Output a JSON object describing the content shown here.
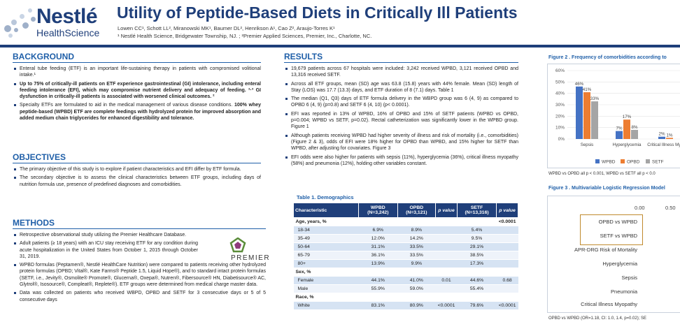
{
  "header": {
    "logo_main": "Nestlé",
    "logo_sub": "HealthScience",
    "title": "Utility of Peptide-Based Diets in Critically Ill Patients",
    "authors": "Lowen CC¹, Schott LL², Miranowski MK¹, Baumer DL², Henrikson A¹, Cao Z², Araujo-Torres K¹",
    "affiliations": "¹ Nestlé Health Science, Bridgewater Township, NJ. ; ²Premier Applied Sciences, Premier, Inc., Charlotte, NC."
  },
  "background": {
    "heading": "BACKGROUND",
    "items": [
      {
        "pre": "Enteral tube feeding (ETF) is an important life-sustaining therapy in patients with compromised volitional intake.¹",
        "bold": ""
      },
      {
        "pre": "",
        "bold": "Up to 75% of critically-ill patients on ETF experience gastrointestinal (GI) intolerance, including enteral feeding intolerance (EFI), which may compromise nutrient delivery and adequacy of feeding. ²·³ GI dysfunction in critically-ill patients is associated with worsened clinical outcomes. ²"
      },
      {
        "pre": "Specialty ETFs are formulated to aid in the medical management of various disease conditions. ",
        "bold": "100% whey peptide-based (WPBD) ETF are complete feedings with hydrolyzed protein for improved absorption and added medium chain triglycerides for enhanced digestibility and tolerance."
      }
    ]
  },
  "objectives": {
    "heading": "OBJECTIVES",
    "items": [
      "The primary objective of this study is to explore if patient characteristics and EFI differ by ETF formula.",
      "The secondary objective is to assess the clinical characteristics between ETF groups, including days of nutrition formula use, presence of predefined diagnoses and comorbidities."
    ]
  },
  "methods": {
    "heading": "METHODS",
    "items": [
      "Retrospective observational study utilizing the Premier Healthcare Database.",
      "Adult patients (≥ 18 years) with an ICU stay receiving ETF for any condition during acute hospitalization in the United States from October 1, 2015 through October 31, 2019.",
      "WPBD formulas (Peptamen®, Nestlé HealthCare Nutrition) were compared to patients receiving other hydrolyzed protein formulas (OPBD; Vital®, Kate Farms® Peptide 1.5, Liquid Hope®), and to standard intact protein formulas (SETF, i.e., Jevity®, Osmolite® Promote®, Glucerna®, Oxepa®, Nutren®, Fibersource® HN, Diabetisource® AC, Glytrol®, Isosource®, Compleat®, Replete®). ETF groups were determined from medical charge master data.",
      "Data was collected on patients who received WBPD, OPBD and SETF for 3 consecutive days or 5 of 5 consecutive days"
    ],
    "premier_logo": "PREMIER"
  },
  "results": {
    "heading": "RESULTS",
    "items": [
      "19,679 patients across 67 hospitals were included: 3,242 received WPBD, 3,121 received OPBD and 13,316 received SETF.",
      "Across all ETF groups, mean (SD) age was 63.8 (15.8) years with 44% female. Mean (SD) length of Stay (LOS) was 17.7 (13.3) days, and ETF duration of 8 (7.1) days. Table 1",
      "The median (Q1, Q3) days of ETF formula delivery in the WBPD group was 6 (4, 9) as compared to OPBD 6 (4, 9) (p=0.8) and SETF 6 (4, 10) (p< 0.0001).",
      "EFI was reported in 13% of WPBD, 16% of OPBD and 15% of SETF patients (WPBD vs OPBD, p=0.004; WPBD vs SETF, p=0.02). Rectal catheterization was significantly lower in the WPBD group. Figure 1",
      "Although patients receiving WPBD had higher severity of illness and risk of mortality (i.e., comorbidities) (Figure 2 & 3), odds of EFI were 18% higher for OPBD than WPBD, and 15% higher for SETF than WPBD, after adjusting for covariates. Figure 3",
      "EFI odds were also higher for patients with sepsis (11%), hyperglycemia (36%), critical illness myopathy (58%) and pneumonia (12%), holding other variables constant."
    ]
  },
  "table1": {
    "title": "Table 1. Demographics",
    "columns": [
      "Characteristic",
      "WPBD (N=3,242)",
      "OPBD (N=3,121)",
      "p value",
      "SETF (N=13,316)",
      "p value"
    ],
    "rows": [
      {
        "cells": [
          "Age, years, %",
          "",
          "",
          "",
          "",
          "<0.0001"
        ],
        "type": "hdrrow"
      },
      {
        "cells": [
          "18-34",
          "6.9%",
          "8.9%",
          "",
          "5.4%",
          ""
        ],
        "type": "alt"
      },
      {
        "cells": [
          "35-49",
          "12.0%",
          "14.2%",
          "",
          "9.5%",
          ""
        ],
        "type": "plain"
      },
      {
        "cells": [
          "50-64",
          "31.1%",
          "33.5%",
          "",
          "29.1%",
          ""
        ],
        "type": "alt"
      },
      {
        "cells": [
          "65-79",
          "36.1%",
          "33.5%",
          "",
          "38.5%",
          ""
        ],
        "type": "plain"
      },
      {
        "cells": [
          "80+",
          "13.9%",
          "9.9%",
          "",
          "17.3%",
          ""
        ],
        "type": "alt"
      },
      {
        "cells": [
          "Sex, %",
          "",
          "",
          "",
          "",
          ""
        ],
        "type": "hdrrow"
      },
      {
        "cells": [
          "Female",
          "44.1%",
          "41.0%",
          "0.01",
          "44.6%",
          "0.68"
        ],
        "type": "alt"
      },
      {
        "cells": [
          "Male",
          "55.9%",
          "59.0%",
          "",
          "55.4%",
          ""
        ],
        "type": "plain"
      },
      {
        "cells": [
          "Race, %",
          "",
          "",
          "",
          "",
          ""
        ],
        "type": "hdrrow"
      },
      {
        "cells": [
          "White",
          "83.1%",
          "80.9%",
          "<0.0001",
          "79.6%",
          "<0.0001"
        ],
        "type": "alt"
      }
    ]
  },
  "figure2": {
    "title": "Figure 2 . Frequency of comorbidities according to",
    "note": "WPBD vs OPBD all p < 0.001, WPBD vs SETF all p < 0.0"
  },
  "figure3": {
    "title": "Figure 3 . Multivariable Logistic Regression Model",
    "ticks": [
      "0.00",
      "0.50"
    ],
    "rows": [
      "OPBD vs WPBD",
      "SETF vs WPBD",
      "APR-DRG Risk of Mortality",
      "Hyperglycemia",
      "Sepsis",
      "Pneumonia",
      "Critical Illness Myopathy"
    ],
    "note": "OPBD vs WPBD (OR=1.18, CI: 1.0, 1.4, p=0.02); SE"
  },
  "chart_data": {
    "type": "bar",
    "title": "Figure 2 . Frequency of comorbidities according to",
    "categories": [
      "Sepsis",
      "Hyperglycemia",
      "Critical Illness Myopath"
    ],
    "series": [
      {
        "name": "WPBD",
        "values": [
          46,
          7,
          2
        ],
        "labels": [
          "46%",
          "7%",
          "2%"
        ],
        "color": "#4472c4"
      },
      {
        "name": "OPBD",
        "values": [
          41,
          17,
          1
        ],
        "labels": [
          "41%",
          "17%",
          "1%"
        ],
        "color": "#ed7d31"
      },
      {
        "name": "SETF",
        "values": [
          33,
          8,
          null
        ],
        "labels": [
          "33%",
          "8%",
          ""
        ],
        "color": "#a5a5a5"
      }
    ],
    "yticks": [
      "60%",
      "50%",
      "40%",
      "30%",
      "20%",
      "10%",
      "0%"
    ],
    "ylim": [
      0,
      60
    ],
    "legend_position": "bottom"
  }
}
